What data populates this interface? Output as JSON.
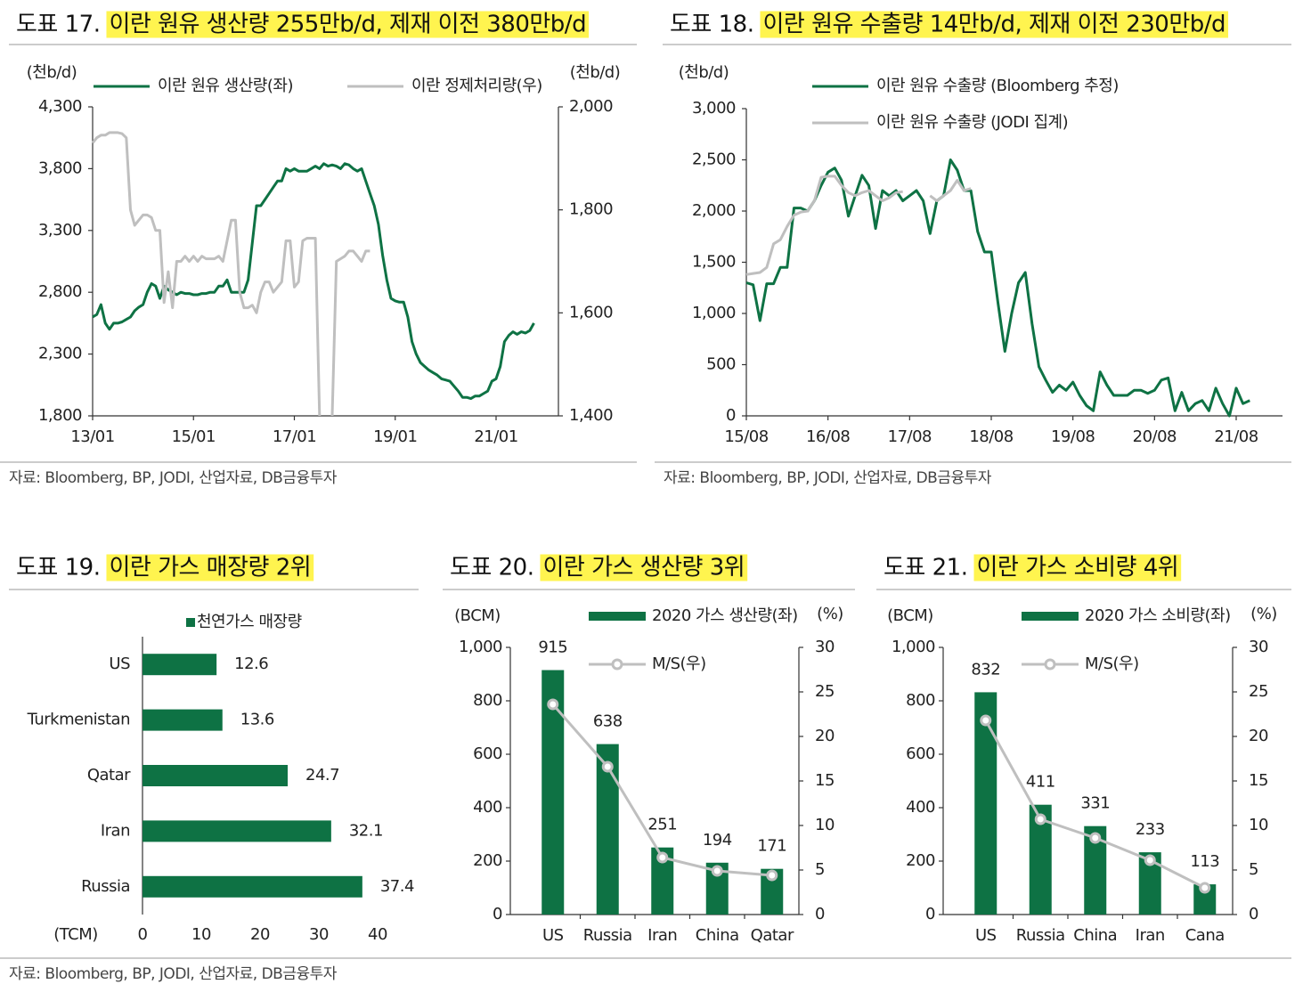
{
  "chart_data": [
    {
      "type": "line",
      "title_number": "도표 17.",
      "title": "이란 원유 생산량 255만b/d, 제재 이전 380만b/d",
      "ylabel": "(천b/d)",
      "y2label": "(천b/d)",
      "x": [
        "13/01",
        "13/02",
        "13/03",
        "13/04",
        "13/05",
        "13/06",
        "13/07",
        "13/08",
        "13/09",
        "13/10",
        "13/11",
        "13/12",
        "14/01",
        "14/02",
        "14/03",
        "14/04",
        "14/05",
        "14/06",
        "14/07",
        "14/08",
        "14/09",
        "14/10",
        "14/11",
        "14/12",
        "15/01",
        "15/02",
        "15/03",
        "15/04",
        "15/05",
        "15/06",
        "15/07",
        "15/08",
        "15/09",
        "15/10",
        "15/11",
        "15/12",
        "16/01",
        "16/02",
        "16/03",
        "16/04",
        "16/05",
        "16/06",
        "16/07",
        "16/08",
        "16/09",
        "16/10",
        "16/11",
        "16/12",
        "17/01",
        "17/02",
        "17/03",
        "17/04",
        "17/05",
        "17/06",
        "17/07",
        "17/08",
        "17/09",
        "17/10",
        "17/11",
        "17/12",
        "18/01",
        "18/02",
        "18/03",
        "18/04",
        "18/05",
        "18/06",
        "18/07",
        "18/08",
        "18/09",
        "18/10",
        "18/11",
        "18/12",
        "19/01",
        "19/02",
        "19/03",
        "19/04",
        "19/05",
        "19/06",
        "19/07",
        "19/08",
        "19/09",
        "19/10",
        "19/11",
        "19/12",
        "20/01",
        "20/02",
        "20/03",
        "20/04",
        "20/05",
        "20/06",
        "20/07",
        "20/08",
        "20/09",
        "20/10",
        "20/11",
        "20/12",
        "21/01",
        "21/02",
        "21/03",
        "21/04",
        "21/05",
        "21/06",
        "21/07",
        "21/08",
        "21/09",
        "21/10"
      ],
      "series": [
        {
          "name": "이란 원유 생산량(좌)",
          "color": "#0e7244",
          "axis": "y",
          "values": [
            2600,
            2620,
            2700,
            2550,
            2500,
            2550,
            2550,
            2560,
            2580,
            2600,
            2650,
            2680,
            2700,
            2800,
            2870,
            2850,
            2750,
            2850,
            2820,
            2800,
            2780,
            2800,
            2790,
            2790,
            2780,
            2780,
            2790,
            2790,
            2800,
            2800,
            2850,
            2850,
            2900,
            2800,
            2800,
            2800,
            2800,
            2900,
            3200,
            3500,
            3500,
            3550,
            3600,
            3650,
            3700,
            3700,
            3800,
            3780,
            3800,
            3780,
            3780,
            3780,
            3800,
            3820,
            3800,
            3840,
            3820,
            3830,
            3820,
            3800,
            3840,
            3830,
            3800,
            3780,
            3800,
            3700,
            3600,
            3500,
            3350,
            3100,
            2900,
            2750,
            2730,
            2720,
            2720,
            2600,
            2400,
            2300,
            2230,
            2200,
            2170,
            2150,
            2130,
            2100,
            2090,
            2080,
            2040,
            2000,
            1950,
            1950,
            1940,
            1960,
            1960,
            1980,
            2000,
            2080,
            2100,
            2200,
            2400,
            2450,
            2480,
            2460,
            2480,
            2470,
            2490,
            2550
          ]
        },
        {
          "name": "이란 정제처리량(우)",
          "color": "#bfbfbf",
          "axis": "y2",
          "values": [
            1930,
            1940,
            1945,
            1945,
            1950,
            1950,
            1950,
            1948,
            1940,
            1800,
            1770,
            1780,
            1790,
            1790,
            1785,
            1760,
            1760,
            1620,
            1680,
            1610,
            1700,
            1700,
            1710,
            1700,
            1710,
            1700,
            1710,
            1705,
            1705,
            1705,
            1710,
            1700,
            1740,
            1780,
            1780,
            1640,
            1610,
            1610,
            1615,
            1600,
            1640,
            1660,
            1660,
            1640,
            1650,
            1660,
            1740,
            1740,
            1650,
            1660,
            1740,
            1745,
            1745,
            1745,
            1400,
            null,
            null,
            1400,
            1700,
            1705,
            1710,
            1720,
            1720,
            1710,
            1700,
            1720,
            1720,
            null,
            null,
            null,
            null,
            null,
            null,
            null,
            null,
            null,
            null,
            null,
            null,
            null,
            null,
            null,
            null,
            null,
            null,
            null,
            null,
            null,
            null,
            null,
            null,
            null,
            null,
            null,
            null,
            null,
            null,
            null,
            null,
            null,
            null,
            null,
            null,
            null,
            null,
            null
          ]
        }
      ],
      "ylim": [
        1800,
        4300
      ],
      "yticks": [
        {
          "value": 1800,
          "label": "1,800"
        },
        {
          "value": 2300,
          "label": "2,300"
        },
        {
          "value": 2800,
          "label": "2,800"
        },
        {
          "value": 3300,
          "label": "3,300"
        },
        {
          "value": 3800,
          "label": "3,800"
        },
        {
          "value": 4300,
          "label": "4,300"
        }
      ],
      "y2lim": [
        1400,
        2000
      ],
      "y2ticks": [
        {
          "value": 1400,
          "label": "1,400"
        },
        {
          "value": 1600,
          "label": "1,600"
        },
        {
          "value": 1800,
          "label": "1,800"
        },
        {
          "value": 2000,
          "label": "2,000"
        }
      ],
      "source": "자료: Bloomberg, BP, JODI, 산업자료, DB금융투자"
    },
    {
      "type": "line",
      "title_number": "도표 18.",
      "title": "이란 원유 수출량 14만b/d, 제재 이전 230만b/d",
      "ylabel": "(천b/d)",
      "x": [
        "15/08",
        "15/09",
        "15/10",
        "15/11",
        "15/12",
        "16/01",
        "16/02",
        "16/03",
        "16/04",
        "16/05",
        "16/06",
        "16/07",
        "16/08",
        "16/09",
        "16/10",
        "16/11",
        "16/12",
        "17/01",
        "17/02",
        "17/03",
        "17/04",
        "17/05",
        "17/06",
        "17/07",
        "17/08",
        "17/09",
        "17/10",
        "17/11",
        "17/12",
        "18/01",
        "18/02",
        "18/03",
        "18/04",
        "18/05",
        "18/06",
        "18/07",
        "18/08",
        "18/09",
        "18/10",
        "18/11",
        "18/12",
        "19/01",
        "19/02",
        "19/03",
        "19/04",
        "19/05",
        "19/06",
        "19/07",
        "19/08",
        "19/09",
        "19/10",
        "19/11",
        "19/12",
        "20/01",
        "20/02",
        "20/03",
        "20/04",
        "20/05",
        "20/06",
        "20/07",
        "20/08",
        "20/09",
        "20/10",
        "20/11",
        "20/12",
        "21/01",
        "21/02",
        "21/03",
        "21/04",
        "21/05",
        "21/06",
        "21/07",
        "21/08",
        "21/09",
        "21/10"
      ],
      "series": [
        {
          "name": "이란 원유 수출량 (Bloomberg 추정)",
          "color": "#0e7244",
          "values": [
            1300,
            1280,
            930,
            1290,
            1290,
            1450,
            1450,
            2030,
            2030,
            2000,
            2100,
            2250,
            2380,
            2420,
            2300,
            1950,
            2150,
            2350,
            2250,
            1830,
            2200,
            2150,
            2200,
            2100,
            2150,
            2200,
            2100,
            1780,
            2100,
            2150,
            2500,
            2400,
            2200,
            2200,
            1800,
            1600,
            1600,
            1100,
            630,
            1000,
            1300,
            1400,
            900,
            480,
            350,
            230,
            300,
            250,
            330,
            200,
            100,
            50,
            430,
            300,
            200,
            200,
            200,
            250,
            250,
            220,
            250,
            350,
            370,
            50,
            230,
            50,
            120,
            150,
            50,
            270,
            120,
            0,
            270,
            120,
            150
          ]
        },
        {
          "name": "이란 원유 수출량 (JODI 집계)",
          "color": "#bfbfbf",
          "values": [
            1380,
            1390,
            1400,
            1450,
            1680,
            1720,
            1850,
            1960,
            1990,
            2000,
            2100,
            2330,
            2340,
            2340,
            2250,
            2180,
            2150,
            2180,
            2200,
            2150,
            2100,
            2130,
            2180,
            2190,
            null,
            null,
            null,
            2150,
            2100,
            2150,
            2200,
            2300,
            2200,
            2220,
            null,
            null,
            null,
            null,
            null,
            null,
            null,
            null,
            null,
            null,
            null,
            null,
            null,
            null,
            null,
            null,
            null,
            null,
            null,
            null,
            null,
            null,
            null,
            null,
            null,
            null,
            null,
            null,
            null,
            null,
            null,
            null,
            null,
            null,
            null,
            null,
            null,
            null,
            null,
            null,
            null
          ]
        }
      ],
      "ylim": [
        0,
        3000
      ],
      "yticks": [
        0,
        500,
        {
          "value": 1000,
          "label": "1,000"
        },
        {
          "value": 1500,
          "label": "1,500"
        },
        {
          "value": 2000,
          "label": "2,000"
        },
        {
          "value": 2500,
          "label": "2,500"
        },
        {
          "value": 3000,
          "label": "3,000"
        }
      ],
      "source": "자료: Bloomberg, BP, JODI, 산업자료, DB금융투자"
    },
    {
      "type": "hbar",
      "title_number": "도표 19.",
      "title": "이란 가스 매장량 2위",
      "xlabel": "(TCM)",
      "categories": [
        "US",
        "Turkmenistan",
        "Qatar",
        "Iran",
        "Russia"
      ],
      "series": [
        {
          "name": "천연가스 매장량",
          "color": "#0e7244",
          "values": [
            12.6,
            13.6,
            24.7,
            32.1,
            37.4
          ],
          "value_label_colors": [
            "#222",
            "#222",
            "#222",
            "#2e8b57",
            "#222"
          ]
        }
      ],
      "xlim": [
        0,
        40
      ],
      "xticks": [
        0,
        10,
        20,
        30,
        40
      ],
      "source": "자료: Bloomberg, BP, JODI, 산업자료, DB금융투자"
    },
    {
      "type": "combo",
      "title_number": "도표 20.",
      "title": "이란 가스 생산량 3위",
      "ylabel": "(BCM)",
      "y2label": "(%)",
      "categories": [
        "US",
        "Russia",
        "Iran",
        "China",
        "Qatar"
      ],
      "series": [
        {
          "name": "2020 가스 생산량(좌)",
          "type": "bar",
          "color": "#0e7244",
          "values": [
            915,
            638,
            251,
            194,
            171
          ],
          "value_label_colors": [
            "#222",
            "#222",
            "#2e8b57",
            "#222",
            "#222"
          ]
        },
        {
          "name": "M/S(우)",
          "type": "line",
          "axis": "y2",
          "color": "#bfbfbf",
          "values": [
            23.6,
            16.6,
            6.4,
            4.9,
            4.4
          ]
        }
      ],
      "ylim": [
        0,
        1000
      ],
      "yticks": [
        0,
        200,
        400,
        600,
        800,
        {
          "value": 1000,
          "label": "1,000"
        }
      ],
      "y2lim": [
        0,
        30
      ],
      "y2ticks": [
        0,
        5,
        10,
        15,
        20,
        25,
        30
      ]
    },
    {
      "type": "combo",
      "title_number": "도표 21.",
      "title": "이란 가스 소비량 4위",
      "ylabel": "(BCM)",
      "y2label": "(%)",
      "categories": [
        "US",
        "Russia",
        "China",
        "Iran",
        "Cana"
      ],
      "series": [
        {
          "name": "2020 가스 소비량(좌)",
          "type": "bar",
          "color": "#0e7244",
          "values": [
            832,
            411,
            331,
            233,
            113
          ],
          "value_label_colors": [
            "#222",
            "#222",
            "#222",
            "#2e8b57",
            "#222"
          ]
        },
        {
          "name": "M/S(우)",
          "type": "line",
          "axis": "y2",
          "color": "#bfbfbf",
          "values": [
            21.8,
            10.7,
            8.6,
            6.1,
            3.0
          ]
        }
      ],
      "ylim": [
        0,
        1000
      ],
      "yticks": [
        0,
        200,
        400,
        600,
        800,
        {
          "value": 1000,
          "label": "1,000"
        }
      ],
      "y2lim": [
        0,
        30
      ],
      "y2ticks": [
        0,
        5,
        10,
        15,
        20,
        25,
        30
      ]
    }
  ]
}
